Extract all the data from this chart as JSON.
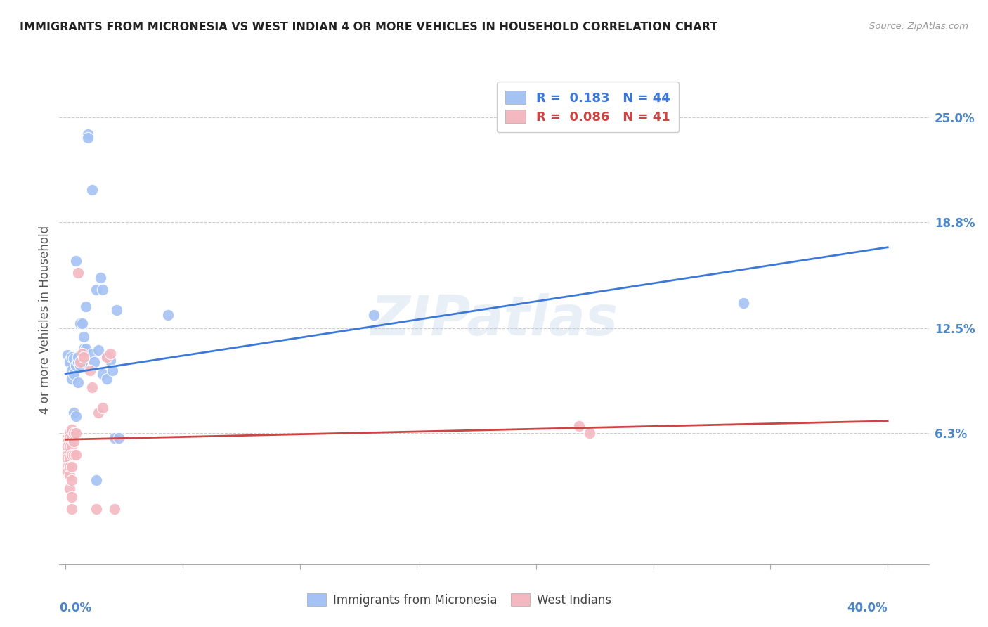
{
  "title": "IMMIGRANTS FROM MICRONESIA VS WEST INDIAN 4 OR MORE VEHICLES IN HOUSEHOLD CORRELATION CHART",
  "source": "Source: ZipAtlas.com",
  "ylabel": "4 or more Vehicles in Household",
  "ytick_labels": [
    "25.0%",
    "18.8%",
    "12.5%",
    "6.3%"
  ],
  "ytick_values": [
    0.25,
    0.188,
    0.125,
    0.063
  ],
  "xtick_labels": [
    "0.0%",
    "40.0%"
  ],
  "xtick_values": [
    0.0,
    0.4
  ],
  "xlim": [
    -0.003,
    0.42
  ],
  "ylim": [
    -0.015,
    0.275
  ],
  "legend_blue_R": "0.183",
  "legend_blue_N": "44",
  "legend_pink_R": "0.086",
  "legend_pink_N": "41",
  "watermark": "ZIPatlas",
  "blue_color": "#a4c2f4",
  "pink_color": "#f4b8c1",
  "blue_line_color": "#3c78d8",
  "pink_line_color": "#cc4444",
  "title_color": "#222222",
  "axis_label_color": "#4a86c8",
  "grid_color": "#cccccc",
  "blue_scatter": [
    [
      0.001,
      0.109
    ],
    [
      0.002,
      0.106
    ],
    [
      0.002,
      0.105
    ],
    [
      0.003,
      0.108
    ],
    [
      0.003,
      0.095
    ],
    [
      0.003,
      0.1
    ],
    [
      0.004,
      0.098
    ],
    [
      0.004,
      0.075
    ],
    [
      0.004,
      0.107
    ],
    [
      0.005,
      0.165
    ],
    [
      0.005,
      0.103
    ],
    [
      0.005,
      0.073
    ],
    [
      0.006,
      0.105
    ],
    [
      0.006,
      0.108
    ],
    [
      0.006,
      0.093
    ],
    [
      0.007,
      0.128
    ],
    [
      0.007,
      0.103
    ],
    [
      0.008,
      0.128
    ],
    [
      0.008,
      0.105
    ],
    [
      0.009,
      0.12
    ],
    [
      0.009,
      0.113
    ],
    [
      0.01,
      0.138
    ],
    [
      0.01,
      0.113
    ],
    [
      0.011,
      0.24
    ],
    [
      0.011,
      0.238
    ],
    [
      0.013,
      0.207
    ],
    [
      0.013,
      0.11
    ],
    [
      0.014,
      0.105
    ],
    [
      0.015,
      0.148
    ],
    [
      0.016,
      0.112
    ],
    [
      0.017,
      0.155
    ],
    [
      0.018,
      0.148
    ],
    [
      0.018,
      0.098
    ],
    [
      0.02,
      0.108
    ],
    [
      0.02,
      0.095
    ],
    [
      0.022,
      0.106
    ],
    [
      0.023,
      0.1
    ],
    [
      0.025,
      0.136
    ],
    [
      0.05,
      0.133
    ],
    [
      0.15,
      0.133
    ],
    [
      0.33,
      0.14
    ],
    [
      0.024,
      0.06
    ],
    [
      0.026,
      0.06
    ],
    [
      0.015,
      0.035
    ]
  ],
  "pink_scatter": [
    [
      0.001,
      0.06
    ],
    [
      0.001,
      0.058
    ],
    [
      0.001,
      0.055
    ],
    [
      0.001,
      0.05
    ],
    [
      0.001,
      0.048
    ],
    [
      0.001,
      0.043
    ],
    [
      0.001,
      0.04
    ],
    [
      0.002,
      0.063
    ],
    [
      0.002,
      0.06
    ],
    [
      0.002,
      0.055
    ],
    [
      0.002,
      0.048
    ],
    [
      0.002,
      0.043
    ],
    [
      0.002,
      0.038
    ],
    [
      0.002,
      0.03
    ],
    [
      0.003,
      0.065
    ],
    [
      0.003,
      0.06
    ],
    [
      0.003,
      0.055
    ],
    [
      0.003,
      0.05
    ],
    [
      0.003,
      0.043
    ],
    [
      0.003,
      0.035
    ],
    [
      0.003,
      0.025
    ],
    [
      0.003,
      0.018
    ],
    [
      0.004,
      0.063
    ],
    [
      0.004,
      0.058
    ],
    [
      0.004,
      0.05
    ],
    [
      0.005,
      0.063
    ],
    [
      0.005,
      0.05
    ],
    [
      0.006,
      0.158
    ],
    [
      0.007,
      0.105
    ],
    [
      0.008,
      0.11
    ],
    [
      0.009,
      0.108
    ],
    [
      0.012,
      0.1
    ],
    [
      0.013,
      0.09
    ],
    [
      0.016,
      0.075
    ],
    [
      0.018,
      0.078
    ],
    [
      0.02,
      0.108
    ],
    [
      0.022,
      0.11
    ],
    [
      0.015,
      0.018
    ],
    [
      0.024,
      0.018
    ],
    [
      0.25,
      0.067
    ],
    [
      0.255,
      0.063
    ]
  ],
  "blue_trendline": [
    [
      0.0,
      0.098
    ],
    [
      0.4,
      0.173
    ]
  ],
  "pink_trendline": [
    [
      0.0,
      0.059
    ],
    [
      0.4,
      0.07
    ]
  ],
  "xtick_minor_values": [
    0.0,
    0.057,
    0.114,
    0.171,
    0.229,
    0.286,
    0.343,
    0.4
  ]
}
